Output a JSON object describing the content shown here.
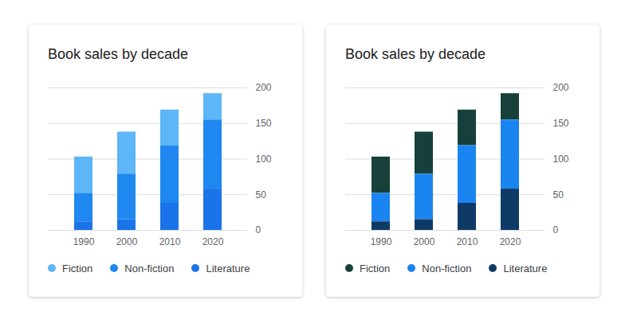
{
  "chart_data": [
    {
      "type": "bar",
      "title": "Book sales by decade",
      "categories": [
        "1990",
        "2000",
        "2010",
        "2020"
      ],
      "series": [
        {
          "name": "Fiction",
          "color": "#5db6f8",
          "values": [
            51,
            59,
            50,
            37
          ]
        },
        {
          "name": "Non-fiction",
          "color": "#1e88f0",
          "values": [
            40,
            64,
            81,
            97
          ]
        },
        {
          "name": "Literature",
          "color": "#1a73e8",
          "values": [
            12,
            15,
            38,
            58
          ]
        }
      ],
      "stacked": true,
      "ylim": [
        0,
        200
      ],
      "yticks": [
        0,
        50,
        100,
        150,
        200
      ],
      "grid": true,
      "legend": "bottom"
    },
    {
      "type": "bar",
      "title": "Book sales by decade",
      "categories": [
        "1990",
        "2000",
        "2010",
        "2020"
      ],
      "series": [
        {
          "name": "Fiction",
          "color": "#17403a",
          "values": [
            51,
            59,
            50,
            37
          ]
        },
        {
          "name": "Non-fiction",
          "color": "#1a85f0",
          "values": [
            40,
            64,
            81,
            97
          ]
        },
        {
          "name": "Literature",
          "color": "#0f3a66",
          "values": [
            12,
            15,
            38,
            58
          ]
        }
      ],
      "stacked": true,
      "ylim": [
        0,
        200
      ],
      "yticks": [
        0,
        50,
        100,
        150,
        200
      ],
      "grid": true,
      "legend": "bottom"
    }
  ]
}
